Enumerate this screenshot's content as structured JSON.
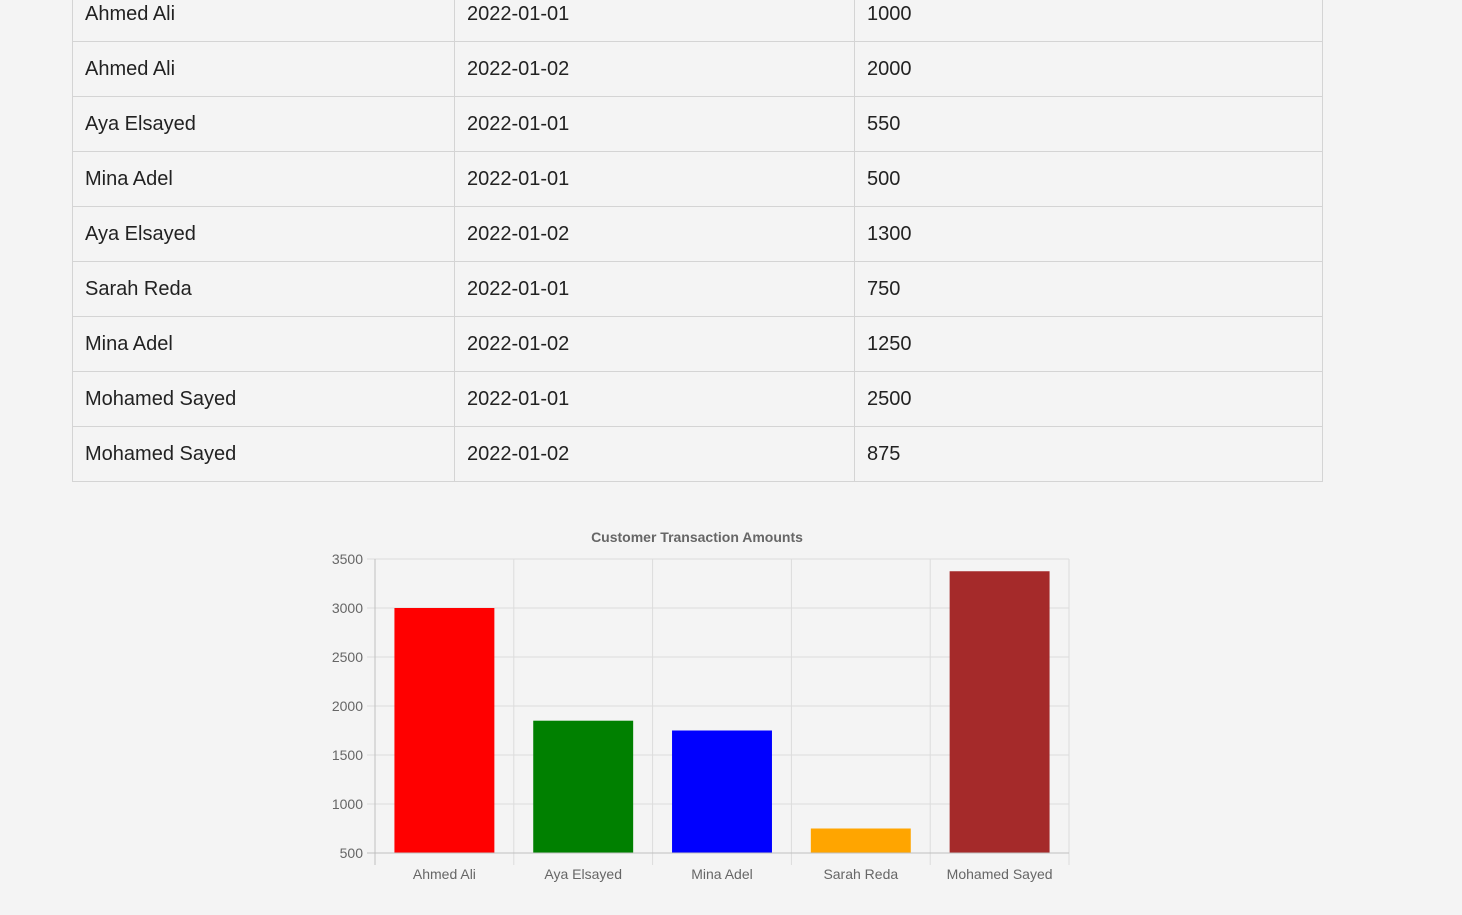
{
  "table": {
    "rows": [
      {
        "name": "Ahmed Ali",
        "date": "2022-01-01",
        "amount": "1000"
      },
      {
        "name": "Ahmed Ali",
        "date": "2022-01-02",
        "amount": "2000"
      },
      {
        "name": "Aya Elsayed",
        "date": "2022-01-01",
        "amount": "550"
      },
      {
        "name": "Mina Adel",
        "date": "2022-01-01",
        "amount": "500"
      },
      {
        "name": "Aya Elsayed",
        "date": "2022-01-02",
        "amount": "1300"
      },
      {
        "name": "Sarah Reda",
        "date": "2022-01-01",
        "amount": "750"
      },
      {
        "name": "Mina Adel",
        "date": "2022-01-02",
        "amount": "1250"
      },
      {
        "name": "Mohamed Sayed",
        "date": "2022-01-01",
        "amount": "2500"
      },
      {
        "name": "Mohamed Sayed",
        "date": "2022-01-02",
        "amount": "875"
      }
    ]
  },
  "chart_data": {
    "type": "bar",
    "title": "Customer Transaction Amounts",
    "categories": [
      "Ahmed Ali",
      "Aya Elsayed",
      "Mina Adel",
      "Sarah Reda",
      "Mohamed Sayed"
    ],
    "values": [
      3000,
      1850,
      1750,
      750,
      3375
    ],
    "colors": [
      "#ff0000",
      "#008000",
      "#0000ff",
      "#ffa500",
      "#a52a2a"
    ],
    "ylim": [
      500,
      3500
    ],
    "yticks": [
      "3500",
      "3000",
      "2500",
      "2000",
      "1500",
      "1000",
      "500"
    ],
    "grid": true,
    "xlabel": "",
    "ylabel": ""
  }
}
